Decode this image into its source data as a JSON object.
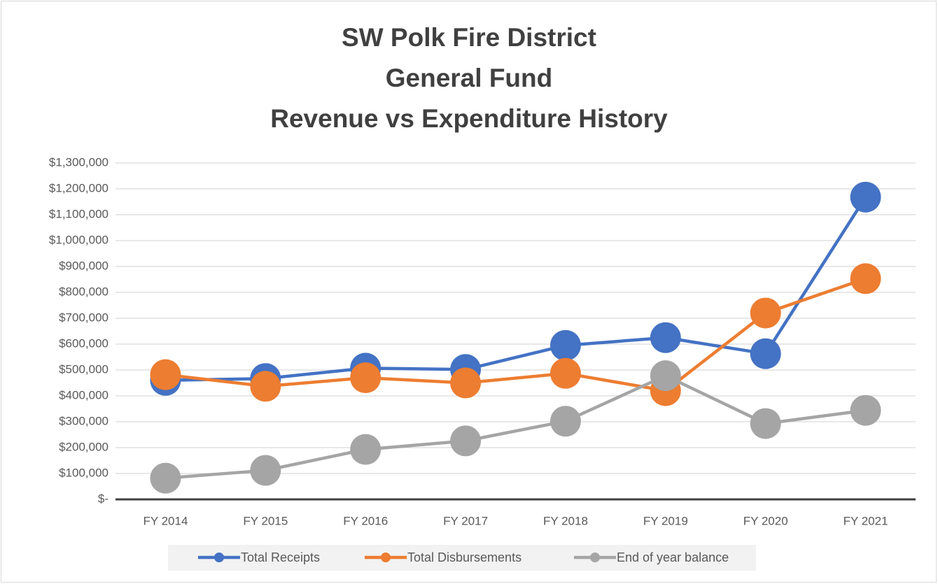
{
  "chart_data": {
    "type": "line",
    "title": [
      "SW Polk Fire District",
      "General Fund",
      "Revenue vs Expenditure History"
    ],
    "categories": [
      "FY 2014",
      "FY 2015",
      "FY 2016",
      "FY 2017",
      "FY 2018",
      "FY 2019",
      "FY 2020",
      "FY 2021"
    ],
    "series": [
      {
        "name": "Total Receipts",
        "color": "#4472c4",
        "values": [
          460000,
          467000,
          507000,
          502000,
          595000,
          625000,
          563000,
          1168000
        ]
      },
      {
        "name": "Total Disbursements",
        "color": "#ed7d31",
        "values": [
          482000,
          437000,
          470000,
          450000,
          487000,
          420000,
          720000,
          853000
        ]
      },
      {
        "name": "End of year balance",
        "color": "#a5a5a5",
        "values": [
          82000,
          112000,
          193000,
          226000,
          302000,
          478000,
          293000,
          344000
        ]
      }
    ],
    "ylim": [
      0,
      1300000
    ],
    "yticks": [
      {
        "value": 0,
        "label": "$-"
      },
      {
        "value": 100000,
        "label": "$100,000"
      },
      {
        "value": 200000,
        "label": "$200,000"
      },
      {
        "value": 300000,
        "label": "$300,000"
      },
      {
        "value": 400000,
        "label": "$400,000"
      },
      {
        "value": 500000,
        "label": "$500,000"
      },
      {
        "value": 600000,
        "label": "$600,000"
      },
      {
        "value": 700000,
        "label": "$700,000"
      },
      {
        "value": 800000,
        "label": "$800,000"
      },
      {
        "value": 900000,
        "label": "$900,000"
      },
      {
        "value": 1000000,
        "label": "$1,000,000"
      },
      {
        "value": 1100000,
        "label": "$1,100,000"
      },
      {
        "value": 1200000,
        "label": "$1,200,000"
      },
      {
        "value": 1300000,
        "label": "$1,300,000"
      }
    ],
    "grid": true,
    "legend": "bottom"
  }
}
